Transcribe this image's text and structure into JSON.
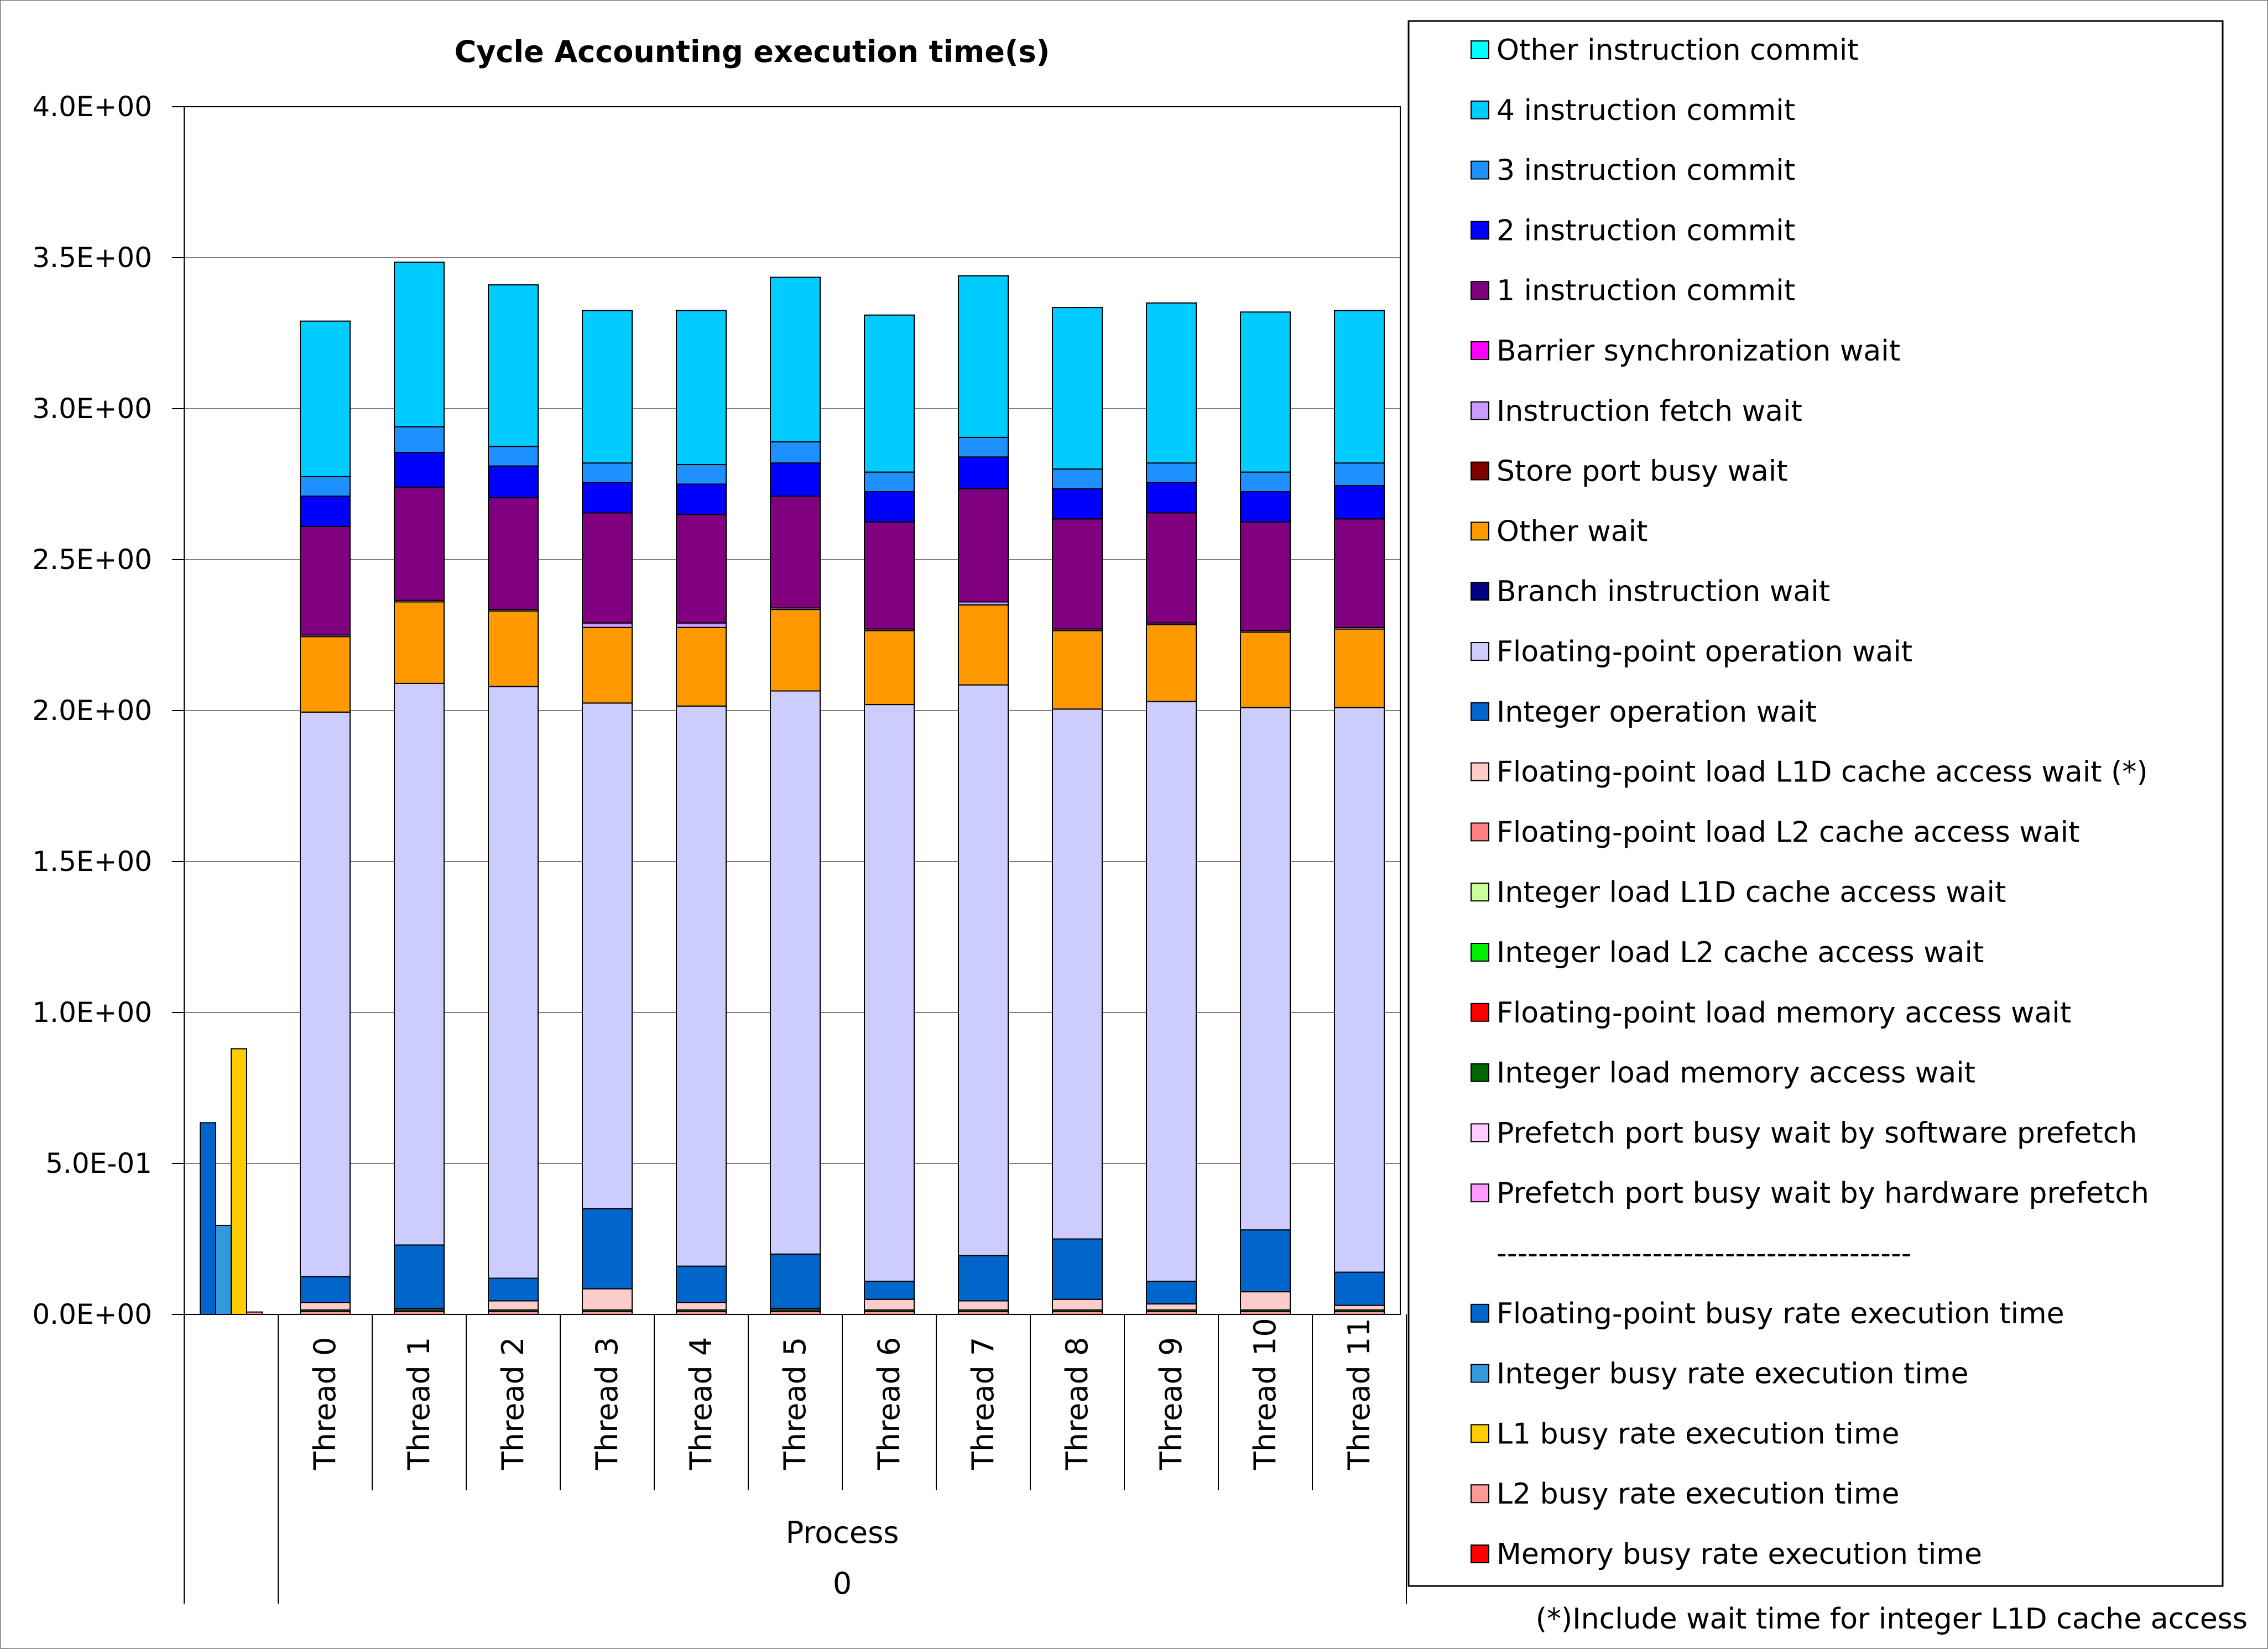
{
  "chart_data": {
    "type": "bar",
    "stacked": true,
    "title": "Cycle Accounting execution time(s)",
    "ylim": [
      0,
      4.0
    ],
    "yticks": [
      "0.0E+00",
      "5.0E-01",
      "1.0E+00",
      "1.5E+00",
      "2.0E+00",
      "2.5E+00",
      "3.0E+00",
      "3.5E+00",
      "4.0E+00"
    ],
    "ytick_values": [
      0,
      0.5,
      1.0,
      1.5,
      2.0,
      2.5,
      3.0,
      3.5,
      4.0
    ],
    "grid": true,
    "legend_position": "right",
    "group_label": "Process",
    "group_value": "0",
    "categories": [
      "Thread 0",
      "Thread 1",
      "Thread 2",
      "Thread 3",
      "Thread 4",
      "Thread 5",
      "Thread 6",
      "Thread 7",
      "Thread 8",
      "Thread 9",
      "Thread 10",
      "Thread 11"
    ],
    "stack_order": [
      "Floating-point load L2 cache access wait",
      "Integer load L2 cache access wait",
      "Floating-point load L1D cache access wait (*)",
      "Integer operation wait",
      "Floating-point operation wait",
      "Other wait",
      "Instruction fetch wait",
      "1 instruction commit",
      "2 instruction commit",
      "3 instruction commit",
      "4 instruction commit"
    ],
    "series": [
      {
        "name": "Floating-point load L2 cache access wait",
        "color": "#ff9999",
        "values": [
          0.01,
          0.01,
          0.01,
          0.01,
          0.01,
          0.01,
          0.01,
          0.01,
          0.01,
          0.01,
          0.01,
          0.01
        ]
      },
      {
        "name": "Integer load L2 cache access wait",
        "color": "#00ee00",
        "values": [
          0.005,
          0.005,
          0.005,
          0.005,
          0.005,
          0.005,
          0.005,
          0.005,
          0.005,
          0.005,
          0.005,
          0.005
        ]
      },
      {
        "name": "Floating-point load L1D cache access wait (*)",
        "color": "#ffcccc",
        "values": [
          0.025,
          0.005,
          0.03,
          0.07,
          0.025,
          0.005,
          0.035,
          0.03,
          0.035,
          0.02,
          0.06,
          0.015
        ]
      },
      {
        "name": "Integer operation wait",
        "color": "#0066cc",
        "values": [
          0.085,
          0.21,
          0.075,
          0.265,
          0.12,
          0.18,
          0.06,
          0.15,
          0.2,
          0.075,
          0.205,
          0.11
        ]
      },
      {
        "name": "Floating-point operation wait",
        "color": "#ccccff",
        "values": [
          1.87,
          1.86,
          1.96,
          1.675,
          1.855,
          1.865,
          1.91,
          1.89,
          1.755,
          1.92,
          1.73,
          1.87
        ]
      },
      {
        "name": "Other wait",
        "color": "#ff9900",
        "values": [
          0.25,
          0.27,
          0.25,
          0.25,
          0.26,
          0.27,
          0.245,
          0.265,
          0.26,
          0.255,
          0.25,
          0.26
        ]
      },
      {
        "name": "Instruction fetch wait",
        "color": "#cc99ff",
        "values": [
          0.005,
          0.005,
          0.005,
          0.015,
          0.015,
          0.005,
          0.005,
          0.01,
          0.005,
          0.005,
          0.005,
          0.005
        ]
      },
      {
        "name": "1 instruction commit",
        "color": "#800080",
        "values": [
          0.36,
          0.375,
          0.37,
          0.365,
          0.36,
          0.37,
          0.355,
          0.375,
          0.365,
          0.365,
          0.36,
          0.36
        ]
      },
      {
        "name": "2 instruction commit",
        "color": "#0000ff",
        "values": [
          0.1,
          0.115,
          0.105,
          0.1,
          0.1,
          0.11,
          0.1,
          0.105,
          0.1,
          0.1,
          0.1,
          0.11
        ]
      },
      {
        "name": "3 instruction commit",
        "color": "#1e90ff",
        "values": [
          0.065,
          0.085,
          0.065,
          0.065,
          0.065,
          0.07,
          0.065,
          0.065,
          0.065,
          0.065,
          0.065,
          0.075
        ]
      },
      {
        "name": "4 instruction commit",
        "color": "#00ccff",
        "values": [
          0.515,
          0.545,
          0.535,
          0.505,
          0.51,
          0.545,
          0.52,
          0.535,
          0.535,
          0.53,
          0.53,
          0.505
        ]
      }
    ],
    "busy_rate_group": {
      "label": "",
      "series": [
        {
          "name": "Floating-point busy rate execution time",
          "color": "#0066cc",
          "value": 0.635
        },
        {
          "name": "Integer busy rate execution time",
          "color": "#3399dd",
          "value": 0.295
        },
        {
          "name": "L1 busy rate execution time",
          "color": "#ffcc00",
          "value": 0.88
        },
        {
          "name": "L2 busy rate execution time",
          "color": "#ff9999",
          "value": 0.008
        }
      ]
    },
    "legend": [
      {
        "label": "Other instruction commit",
        "color": "#00ffff"
      },
      {
        "label": "4 instruction commit",
        "color": "#00ccff"
      },
      {
        "label": "3 instruction commit",
        "color": "#1e90ff"
      },
      {
        "label": "2 instruction commit",
        "color": "#0000ff"
      },
      {
        "label": "1 instruction commit",
        "color": "#800080"
      },
      {
        "label": "Barrier synchronization wait",
        "color": "#ff00ff"
      },
      {
        "label": "Instruction fetch wait",
        "color": "#cc99ff"
      },
      {
        "label": "Store port busy wait",
        "color": "#800000"
      },
      {
        "label": "Other wait",
        "color": "#ff9900"
      },
      {
        "label": "Branch instruction wait",
        "color": "#000080"
      },
      {
        "label": "Floating-point operation wait",
        "color": "#ccccff"
      },
      {
        "label": "Integer operation wait",
        "color": "#0066cc"
      },
      {
        "label": "Floating-point load L1D cache access wait (*)",
        "color": "#ffcccc"
      },
      {
        "label": "Floating-point load L2 cache access wait",
        "color": "#ff8080"
      },
      {
        "label": "Integer load L1D cache access wait",
        "color": "#ccff99"
      },
      {
        "label": "Integer load L2 cache access wait",
        "color": "#00ee00"
      },
      {
        "label": "Floating-point load memory access wait",
        "color": "#ff0000"
      },
      {
        "label": "Integer load memory access wait",
        "color": "#006600"
      },
      {
        "label": "Prefetch port busy wait by software prefetch",
        "color": "#ffccff"
      },
      {
        "label": "Prefetch port busy wait by hardware prefetch",
        "color": "#ff99ff"
      },
      {
        "label": "----------------------------------------",
        "color": null
      },
      {
        "label": "Floating-point busy rate execution time",
        "color": "#0066cc"
      },
      {
        "label": "Integer busy rate execution time",
        "color": "#3399dd"
      },
      {
        "label": "L1 busy rate execution time",
        "color": "#ffcc00"
      },
      {
        "label": "L2 busy rate execution time",
        "color": "#ff9999"
      },
      {
        "label": "Memory busy rate execution time",
        "color": "#ff0000"
      }
    ],
    "footnote": "(*)Include wait time for integer L1D cache access"
  }
}
